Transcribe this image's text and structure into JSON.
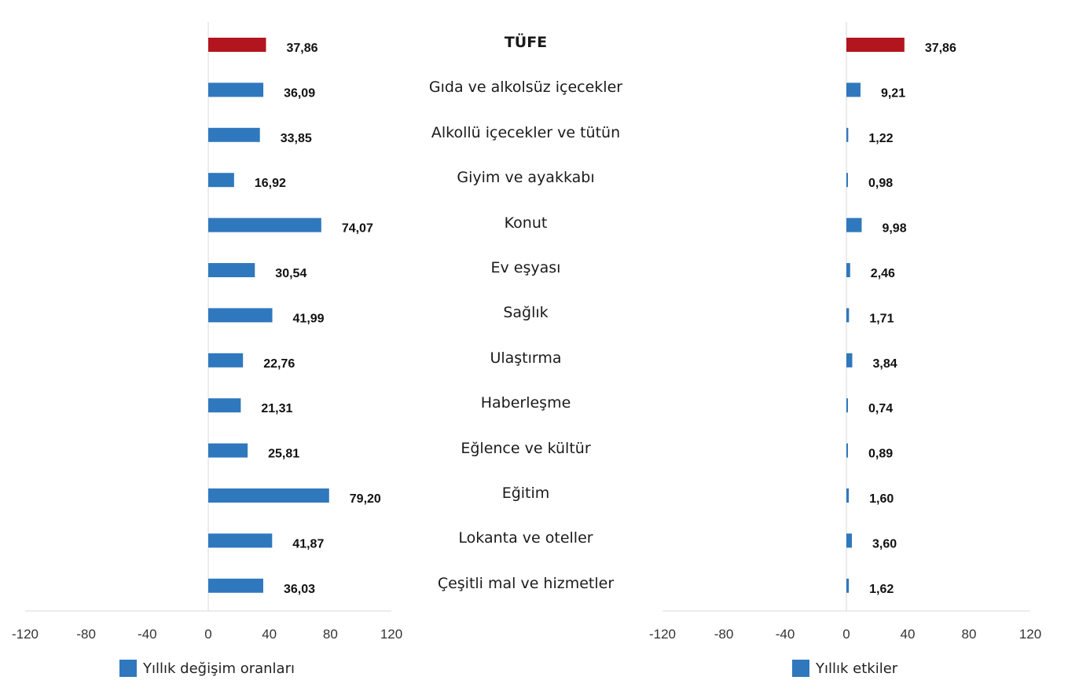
{
  "colors": {
    "bar": "#2f78bd",
    "highlight": "#b3151f",
    "axis": "#d9d9d9"
  },
  "categories": [
    "TÜFE",
    "Gıda ve alkolsüz içecekler",
    "Alkollü içecekler ve tütün",
    "Giyim ve ayakkabı",
    "Konut",
    "Ev eşyası",
    "Sağlık",
    "Ulaştırma",
    "Haberleşme",
    "Eğlence ve kültür",
    "Eğitim",
    "Lokanta ve oteller",
    "Çeşitli mal ve hizmetler"
  ],
  "chart_data": [
    {
      "type": "bar",
      "orientation": "horizontal",
      "categories": [
        "TÜFE",
        "Gıda ve alkolsüz içecekler",
        "Alkollü içecekler ve tütün",
        "Giyim ve ayakkabı",
        "Konut",
        "Ev eşyası",
        "Sağlık",
        "Ulaştırma",
        "Haberleşme",
        "Eğlence ve kültür",
        "Eğitim",
        "Lokanta ve oteller",
        "Çeşitli mal ve hizmetler"
      ],
      "series": [
        {
          "name": "Yıllık değişim oranları",
          "values": [
            37.86,
            36.09,
            33.85,
            16.92,
            74.07,
            30.54,
            41.99,
            22.76,
            21.31,
            25.81,
            79.2,
            41.87,
            36.03
          ]
        }
      ],
      "data_labels": [
        "37,86",
        "36,09",
        "33,85",
        "16,92",
        "74,07",
        "30,54",
        "41,99",
        "22,76",
        "21,31",
        "25,81",
        "79,20",
        "41,87",
        "36,03"
      ],
      "highlight_index": 0,
      "xlim": [
        -120,
        120
      ],
      "xticks": [
        "-120",
        "-80",
        "-40",
        "0",
        "40",
        "80",
        "120"
      ],
      "grid": false,
      "legend": "bottom"
    },
    {
      "type": "bar",
      "orientation": "horizontal",
      "categories": [
        "TÜFE",
        "Gıda ve alkolsüz içecekler",
        "Alkollü içecekler ve tütün",
        "Giyim ve ayakkabı",
        "Konut",
        "Ev eşyası",
        "Sağlık",
        "Ulaştırma",
        "Haberleşme",
        "Eğlence ve kültür",
        "Eğitim",
        "Lokanta ve oteller",
        "Çeşitli mal ve hizmetler"
      ],
      "series": [
        {
          "name": "Yıllık etkiler",
          "values": [
            37.86,
            9.21,
            1.22,
            0.98,
            9.98,
            2.46,
            1.71,
            3.84,
            0.74,
            0.89,
            1.6,
            3.6,
            1.62
          ]
        }
      ],
      "data_labels": [
        "37,86",
        "9,21",
        "1,22",
        "0,98",
        "9,98",
        "2,46",
        "1,71",
        "3,84",
        "0,74",
        "0,89",
        "1,60",
        "3,60",
        "1,62"
      ],
      "highlight_index": 0,
      "xlim": [
        -120,
        120
      ],
      "xticks": [
        "-120",
        "-80",
        "-40",
        "0",
        "40",
        "80",
        "120"
      ],
      "grid": false,
      "legend": "bottom"
    }
  ]
}
